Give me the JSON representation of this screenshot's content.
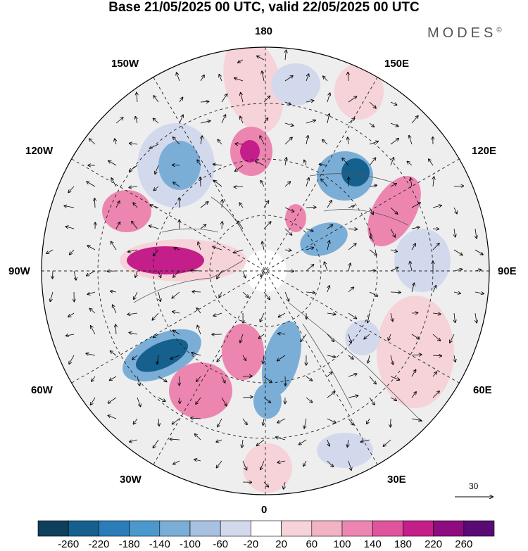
{
  "title": "Base 21/05/2025 00 UTC, valid 22/05/2025 00 UTC",
  "brand": "MODES",
  "brand_mark": "©",
  "map_type": "polar-stereographic-north",
  "lon_labels": {
    "top": "180",
    "bottom": "0",
    "left": "90W",
    "right": "90E",
    "upper_left_outer": "150W",
    "upper_left_inner": "120W",
    "upper_right_outer": "150E",
    "upper_right_inner": "120E",
    "lower_left_outer": "30W",
    "lower_left_inner": "60W",
    "lower_right_outer": "30E",
    "lower_right_inner": "60E"
  },
  "vector_scale": "30",
  "colorbar": {
    "labels": [
      "-260",
      "-220",
      "-180",
      "-140",
      "-100",
      "-60",
      "-20",
      "20",
      "60",
      "100",
      "140",
      "180",
      "220",
      "260"
    ],
    "colors": [
      "#0e3f5c",
      "#15608d",
      "#2a7db8",
      "#4b99cc",
      "#7aaed7",
      "#a9c1e0",
      "#d3d9ec",
      "#ffffff",
      "#f6d3d8",
      "#f2b3c4",
      "#ec86b0",
      "#e0549e",
      "#c41e8a",
      "#8e0c80",
      "#5a0a74"
    ]
  },
  "anomaly_colors": {
    "strong_pos": "#c41e8a",
    "pos": "#ec86b0",
    "weak_pos": "#f6d3d8",
    "strong_neg": "#15608d",
    "neg": "#7aaed7",
    "weak_neg": "#d3d9ec"
  }
}
